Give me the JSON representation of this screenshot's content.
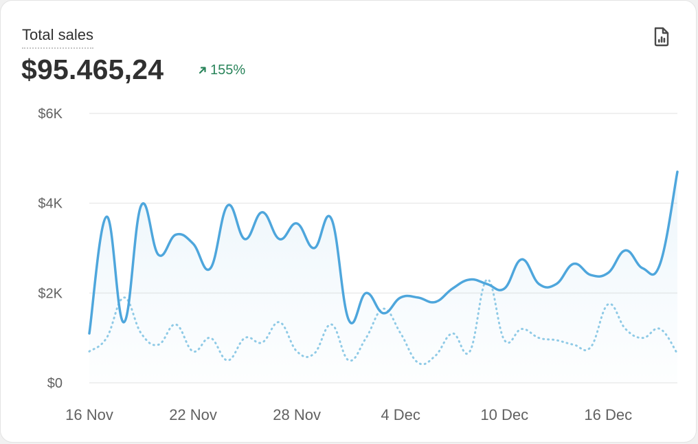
{
  "card": {
    "title": "Total sales",
    "total": "$95.465,24",
    "change": "155%"
  },
  "icons": {
    "change": "arrow-up-right-icon",
    "report": "report-file-icon"
  },
  "colors": {
    "primary_series": "#4ea6dc",
    "comparison_series": "#8fcae6",
    "change_positive": "#29845a",
    "grid": "#ebebeb"
  },
  "chart_data": {
    "type": "line",
    "x": [
      "16 Nov",
      "17 Nov",
      "18 Nov",
      "19 Nov",
      "20 Nov",
      "21 Nov",
      "22 Nov",
      "23 Nov",
      "24 Nov",
      "25 Nov",
      "26 Nov",
      "27 Nov",
      "28 Nov",
      "29 Nov",
      "30 Nov",
      "1 Dec",
      "2 Dec",
      "3 Dec",
      "4 Dec",
      "5 Dec",
      "6 Dec",
      "7 Dec",
      "8 Dec",
      "9 Dec",
      "10 Dec",
      "11 Dec",
      "12 Dec",
      "13 Dec",
      "14 Dec",
      "15 Dec",
      "16 Dec",
      "17 Dec",
      "18 Dec",
      "19 Dec",
      "20 Dec"
    ],
    "x_ticks": [
      "16 Nov",
      "22 Nov",
      "28 Nov",
      "4 Dec",
      "10 Dec",
      "16 Dec"
    ],
    "y_ticks": [
      "$0",
      "$2K",
      "$4K",
      "$6K"
    ],
    "ylim": [
      0,
      6000
    ],
    "grid": true,
    "legend": "none",
    "series": [
      {
        "style": "solid",
        "values": [
          1100,
          3700,
          1350,
          3950,
          2850,
          3300,
          3100,
          2550,
          3950,
          3200,
          3800,
          3200,
          3550,
          3000,
          3650,
          1400,
          2000,
          1550,
          1900,
          1900,
          1800,
          2100,
          2300,
          2200,
          2100,
          2750,
          2200,
          2200,
          2650,
          2400,
          2450,
          2950,
          2550,
          2650,
          4700
        ]
      },
      {
        "style": "dotted",
        "values": [
          700,
          1000,
          1900,
          1100,
          850,
          1300,
          700,
          1000,
          500,
          1000,
          900,
          1350,
          700,
          650,
          1300,
          500,
          1000,
          1650,
          1100,
          450,
          600,
          1100,
          700,
          2300,
          950,
          1200,
          1000,
          950,
          850,
          800,
          1750,
          1200,
          1000,
          1200,
          650
        ]
      }
    ]
  }
}
